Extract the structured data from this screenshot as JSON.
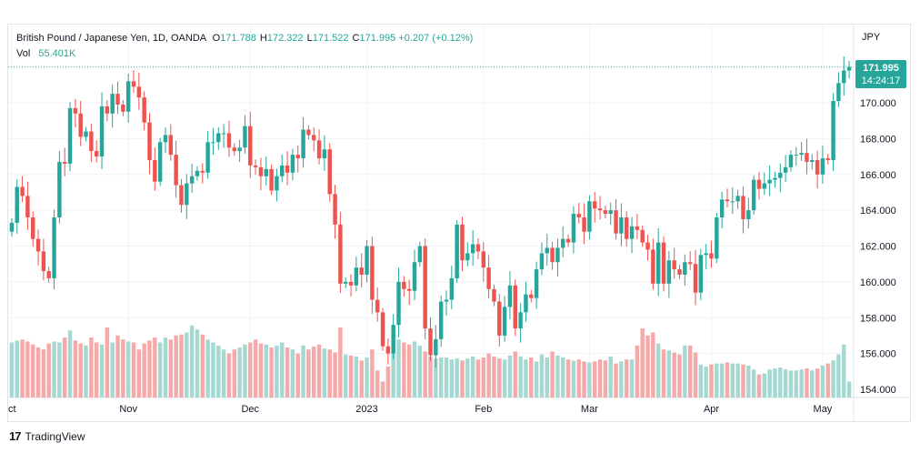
{
  "header": {
    "symbol_line": "British Pound / Japanese Yen, 1D, OANDA",
    "ohlc": [
      {
        "k": "O",
        "v": "171.788"
      },
      {
        "k": "H",
        "v": "172.322"
      },
      {
        "k": "L",
        "v": "171.522"
      },
      {
        "k": "C",
        "v": "171.995"
      }
    ],
    "change": "+0.207 (+0.12%)",
    "vol_label": "Vol",
    "vol_value": "55.401K"
  },
  "currency": "JPY",
  "badge": {
    "price": "171.995",
    "countdown": "14:24:17"
  },
  "branding": "TradingView",
  "colors": {
    "up": "#26a69a",
    "down": "#ef5350",
    "vol_up": "#a6d8d2",
    "vol_down": "#f5a9a8",
    "grid": "#f0f3fa"
  },
  "chart_data": {
    "type": "candlestick",
    "title": "British Pound / Japanese Yen, 1D, OANDA",
    "y_ticks": [
      "154.000",
      "156.000",
      "158.000",
      "160.000",
      "162.000",
      "164.000",
      "166.000",
      "168.000",
      "170.000"
    ],
    "ylim": [
      153.8,
      175.0
    ],
    "x_labels": [
      {
        "label": "ct",
        "index": 0
      },
      {
        "label": "Nov",
        "index": 22
      },
      {
        "label": "Dec",
        "index": 45
      },
      {
        "label": "2023",
        "index": 67
      },
      {
        "label": "Feb",
        "index": 89
      },
      {
        "label": "Mar",
        "index": 109
      },
      {
        "label": "Apr",
        "index": 132
      },
      {
        "label": "May",
        "index": 153
      }
    ],
    "last_price": 171.995,
    "closes": [
      163.3,
      165.3,
      164.8,
      163.6,
      162.4,
      161.7,
      160.6,
      160.2,
      163.6,
      166.7,
      166.6,
      169.7,
      169.4,
      168.1,
      168.4,
      167.3,
      167.0,
      169.8,
      169.4,
      170.5,
      169.9,
      169.5,
      171.2,
      170.9,
      170.3,
      168.9,
      166.8,
      165.6,
      167.8,
      168.2,
      167.1,
      165.4,
      164.3,
      165.5,
      165.9,
      166.2,
      166.1,
      167.8,
      167.8,
      168.3,
      168.3,
      167.5,
      167.3,
      167.5,
      168.7,
      166.5,
      166.4,
      165.9,
      166.3,
      165.1,
      165.9,
      166.5,
      166.1,
      167.1,
      166.9,
      168.5,
      168.2,
      167.9,
      166.9,
      167.4,
      164.9,
      163.2,
      159.9,
      160.0,
      159.8,
      160.8,
      160.4,
      162.0,
      159.0,
      158.3,
      156.4,
      156.0,
      157.6,
      160.0,
      159.6,
      159.5,
      161.1,
      162.0,
      157.4,
      155.9,
      156.8,
      158.9,
      159.0,
      160.2,
      163.2,
      161.2,
      161.6,
      162.1,
      161.7,
      160.8,
      159.6,
      158.9,
      157.0,
      158.6,
      159.8,
      157.4,
      158.3,
      159.3,
      159.1,
      160.7,
      161.6,
      161.9,
      161.1,
      161.9,
      162.4,
      162.2,
      163.8,
      163.6,
      162.8,
      164.5,
      164.1,
      164.0,
      163.8,
      164.0,
      162.7,
      163.6,
      162.4,
      163.1,
      162.9,
      162.2,
      161.8,
      159.9,
      162.2,
      159.9,
      161.2,
      160.7,
      160.4,
      161.1,
      161.0,
      159.4,
      161.5,
      161.6,
      161.3,
      163.6,
      164.6,
      164.5,
      164.5,
      164.8,
      163.5,
      164.0,
      165.7,
      165.2,
      165.5,
      165.7,
      165.8,
      166.1,
      166.4,
      167.1,
      167.1,
      167.2,
      166.7,
      166.8,
      166.0,
      166.9,
      166.8,
      170.1,
      171.1,
      171.8,
      172.0
    ],
    "volumes_rel": [
      0.55,
      0.57,
      0.58,
      0.56,
      0.53,
      0.5,
      0.48,
      0.54,
      0.56,
      0.55,
      0.6,
      0.67,
      0.57,
      0.54,
      0.52,
      0.6,
      0.55,
      0.53,
      0.7,
      0.55,
      0.62,
      0.58,
      0.56,
      0.55,
      0.48,
      0.54,
      0.57,
      0.6,
      0.55,
      0.6,
      0.58,
      0.62,
      0.63,
      0.65,
      0.72,
      0.68,
      0.63,
      0.58,
      0.55,
      0.52,
      0.48,
      0.44,
      0.48,
      0.5,
      0.53,
      0.55,
      0.58,
      0.54,
      0.53,
      0.5,
      0.52,
      0.55,
      0.5,
      0.48,
      0.44,
      0.52,
      0.48,
      0.51,
      0.53,
      0.49,
      0.48,
      0.45,
      0.7,
      0.43,
      0.42,
      0.41,
      0.37,
      0.4,
      0.48,
      0.27,
      0.16,
      0.31,
      0.54,
      0.58,
      0.55,
      0.53,
      0.56,
      0.52,
      0.46,
      0.41,
      0.39,
      0.4,
      0.4,
      0.38,
      0.39,
      0.37,
      0.39,
      0.41,
      0.38,
      0.4,
      0.44,
      0.41,
      0.39,
      0.38,
      0.42,
      0.46,
      0.41,
      0.38,
      0.4,
      0.36,
      0.43,
      0.4,
      0.46,
      0.42,
      0.4,
      0.38,
      0.37,
      0.38,
      0.36,
      0.35,
      0.36,
      0.38,
      0.37,
      0.41,
      0.34,
      0.36,
      0.38,
      0.38,
      0.52,
      0.69,
      0.62,
      0.65,
      0.54,
      0.48,
      0.47,
      0.45,
      0.43,
      0.52,
      0.52,
      0.45,
      0.33,
      0.31,
      0.33,
      0.34,
      0.34,
      0.35,
      0.34,
      0.34,
      0.33,
      0.32,
      0.28,
      0.23,
      0.24,
      0.28,
      0.29,
      0.3,
      0.28,
      0.27,
      0.27,
      0.28,
      0.29,
      0.27,
      0.29,
      0.32,
      0.34,
      0.37,
      0.43,
      0.53,
      0.16
    ]
  }
}
